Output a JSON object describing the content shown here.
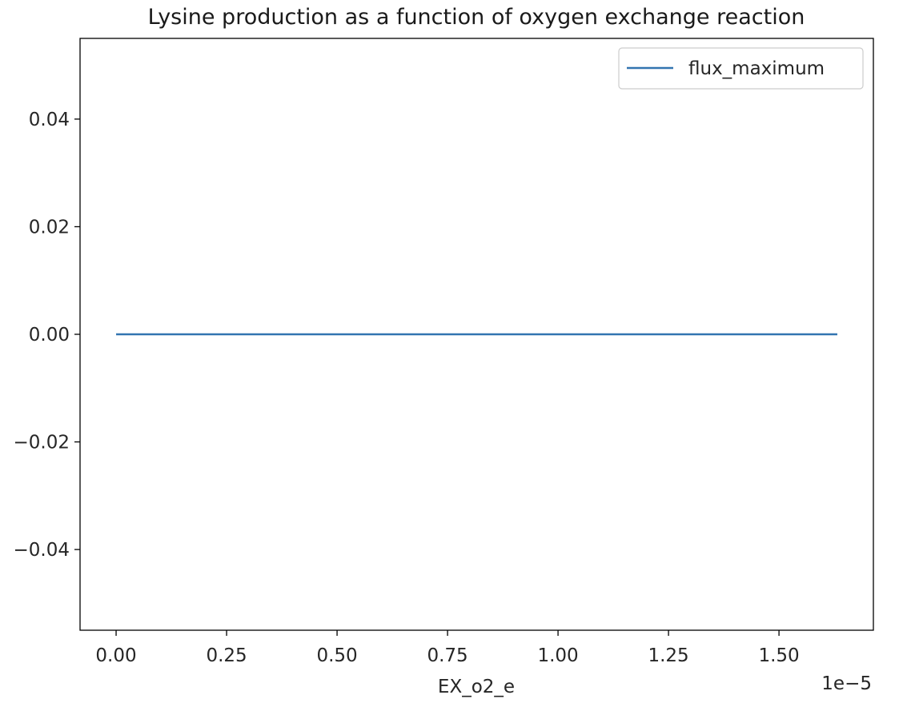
{
  "chart_data": {
    "type": "line",
    "title": "Lysine production as a function of oxygen exchange reaction",
    "xlabel": "EX_o2_e",
    "ylabel": "",
    "x_offset_label": "1e−5",
    "x_multiplier": 1e-05,
    "xlim": [
      -0.0816,
      1.7136
    ],
    "ylim": [
      -0.055,
      0.055
    ],
    "xticks": [
      0.0,
      0.25,
      0.5,
      0.75,
      1.0,
      1.25,
      1.5
    ],
    "xtick_labels": [
      "0.00",
      "0.25",
      "0.50",
      "0.75",
      "1.00",
      "1.25",
      "1.50"
    ],
    "yticks": [
      0.04,
      0.02,
      0.0,
      -0.02,
      -0.04
    ],
    "ytick_labels": [
      "0.04",
      "0.02",
      "0.00",
      "−0.02",
      "−0.04"
    ],
    "grid": false,
    "legend_position": "upper right",
    "series": [
      {
        "name": "flux_maximum",
        "color": "#3274b0",
        "x": [
          0.0,
          1.632
        ],
        "y": [
          0.0,
          0.0
        ]
      }
    ]
  }
}
